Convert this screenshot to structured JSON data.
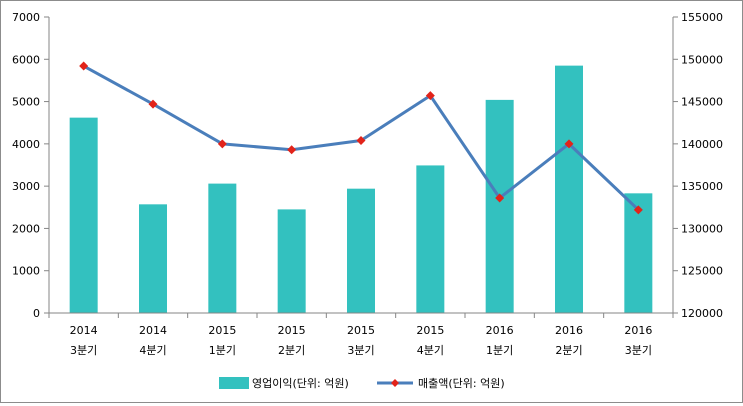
{
  "chart_data": {
    "type": "bar",
    "categories": [
      [
        "2014",
        "3분기"
      ],
      [
        "2014",
        "4분기"
      ],
      [
        "2015",
        "1분기"
      ],
      [
        "2015",
        "2분기"
      ],
      [
        "2015",
        "3분기"
      ],
      [
        "2015",
        "4분기"
      ],
      [
        "2016",
        "1분기"
      ],
      [
        "2016",
        "2분기"
      ],
      [
        "2016",
        "3분기"
      ]
    ],
    "series": [
      {
        "name": "영업이익(단위: 억원)",
        "type": "bar",
        "axis": "left",
        "color": "#33c1bf",
        "values": [
          4620,
          2570,
          3060,
          2450,
          2940,
          3490,
          5040,
          5850,
          2830
        ]
      },
      {
        "name": "매출액(단위: 억원)",
        "type": "line",
        "axis": "right",
        "color": "#4a7ebb",
        "marker_color": "#e2231a",
        "values": [
          149200,
          144700,
          140000,
          139300,
          140400,
          145700,
          133600,
          140000,
          132200
        ]
      }
    ],
    "y_left": {
      "min": 0,
      "max": 7000,
      "ticks": [
        "0",
        "1000",
        "2000",
        "3000",
        "4000",
        "5000",
        "6000",
        "7000"
      ]
    },
    "y_right": {
      "min": 120000,
      "max": 155000,
      "ticks": [
        "120000",
        "125000",
        "130000",
        "135000",
        "140000",
        "145000",
        "150000",
        "155000"
      ]
    },
    "grid": false,
    "legend": "bottom"
  }
}
